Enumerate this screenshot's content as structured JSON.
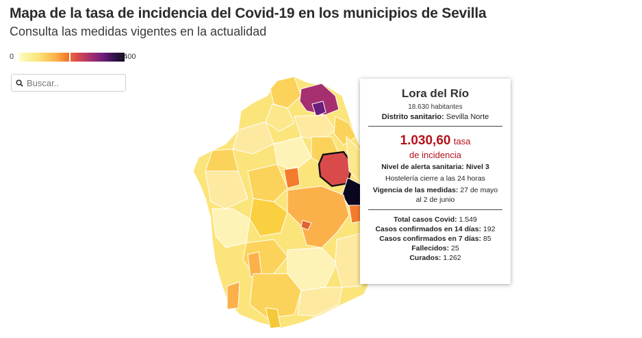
{
  "header": {
    "title": "Mapa de la tasa de incidencia del Covid-19 en los municipios de Sevilla",
    "subtitle": "Consulta las medidas vigentes en la actualidad"
  },
  "legend": {
    "min": "0",
    "max": "2400",
    "colors": [
      "#fcfdbf",
      "#fbe47a",
      "#fcb04a",
      "#f47b2c",
      "#d94b4b",
      "#a6306f",
      "#6b1d7a",
      "#2b1242",
      "#0c0720"
    ]
  },
  "search": {
    "placeholder": "Buscar..",
    "icon": "search-icon"
  },
  "tooltip": {
    "municipality": "Lora del Río",
    "population": "18.630 habitantes",
    "district_label": "Distrito sanitario:",
    "district_value": "Sevilla Norte",
    "rate_value": "1.030,60",
    "rate_unit": "tasa",
    "rate_sub": "de incidencia",
    "alert_label": "Nivel de alerta sanitaria:",
    "alert_value": "Nivel 3",
    "measure_text": "Hostelería cierre a las 24 horas",
    "validity_label": "Vigencia de las medidas:",
    "validity_value": "27 de mayo al 2 de junio",
    "total_label": "Total casos Covid:",
    "total_value": "1.549",
    "c14_label": "Casos confirmados en 14 días:",
    "c14_value": "192",
    "c7_label": "Casos confirmados en 7 días:",
    "c7_value": "85",
    "deaths_label": "Fallecidos:",
    "deaths_value": "25",
    "recovered_label": "Curados:",
    "recovered_value": "1.262",
    "rate_color": "#b5111a"
  }
}
